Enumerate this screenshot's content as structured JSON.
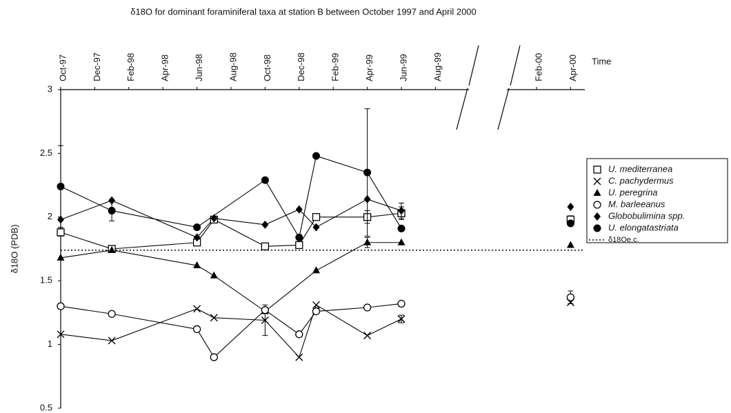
{
  "chart_data": {
    "type": "line",
    "title": "δ18O for dominant foraminiferal taxa at station B between October 1997 and April 2000",
    "y_label": "δ18O (PDB)",
    "x_label": "Time",
    "xticks": [
      "Oct-97",
      "Dec-97",
      "Feb-98",
      "Apr-98",
      "Jun-98",
      "Aug-98",
      "Oct-98",
      "Dec-98",
      "Feb-99",
      "Apr-99",
      "Jun-99",
      "Aug-99",
      "Feb-00",
      "Apr-00"
    ],
    "ylim": [
      0.5,
      3
    ],
    "yticks": [
      0.5,
      1,
      1.5,
      2,
      2.5,
      3
    ],
    "series": [
      {
        "name": "U. mediterranea",
        "marker": "square-open",
        "color": "#000000",
        "x": [
          "Oct-97",
          "Jan-98",
          "Jun-98",
          "Jul-98",
          "Oct-98",
          "Dec-98",
          "Jan-99",
          "Apr-99",
          "Jun-99",
          "Apr-00"
        ],
        "values": [
          1.88,
          1.75,
          1.8,
          1.98,
          1.77,
          1.78,
          2.0,
          2.0,
          2.03,
          1.98
        ],
        "errors": [
          0.03,
          null,
          null,
          null,
          null,
          null,
          null,
          0.05,
          0.05,
          0.03
        ]
      },
      {
        "name": "C. pachydermus",
        "marker": "cross",
        "color": "#000000",
        "x": [
          "Oct-97",
          "Jan-98",
          "Jun-98",
          "Jul-98",
          "Oct-98",
          "Dec-98",
          "Jan-99",
          "Apr-99",
          "Jun-99",
          "Apr-00"
        ],
        "values": [
          1.08,
          1.03,
          1.28,
          1.21,
          1.19,
          0.9,
          1.31,
          1.07,
          1.2,
          1.33
        ],
        "errors": [
          null,
          null,
          null,
          null,
          0.12,
          null,
          null,
          null,
          0.03,
          null
        ]
      },
      {
        "name": "U. peregrina",
        "marker": "triangle",
        "color": "#000000",
        "x": [
          "Oct-97",
          "Jan-98",
          "Jun-98",
          "Jul-98",
          "Oct-98",
          "Jan-99",
          "Apr-99",
          "Jun-99",
          "Apr-00"
        ],
        "values": [
          1.68,
          1.74,
          1.62,
          1.54,
          1.26,
          1.58,
          1.8,
          1.8,
          1.78
        ],
        "errors": [
          null,
          null,
          null,
          null,
          null,
          null,
          0.04,
          null,
          null
        ]
      },
      {
        "name": "M. barleeanus",
        "marker": "circle-open",
        "color": "#000000",
        "x": [
          "Oct-97",
          "Jan-98",
          "Jun-98",
          "Jul-98",
          "Oct-98",
          "Dec-98",
          "Jan-99",
          "Apr-99",
          "Jun-99",
          "Apr-00"
        ],
        "values": [
          1.3,
          1.24,
          1.12,
          0.9,
          1.27,
          1.08,
          1.26,
          1.29,
          1.32,
          1.37
        ],
        "errors": [
          null,
          null,
          null,
          null,
          null,
          null,
          null,
          null,
          null,
          0.05
        ]
      },
      {
        "name": "Globobulimina spp.",
        "marker": "diamond",
        "color": "#000000",
        "x": [
          "Oct-97",
          "Jan-98",
          "Jun-98",
          "Jul-98",
          "Oct-98",
          "Dec-98",
          "Jan-99",
          "Apr-99",
          "Jun-99",
          "Apr-00"
        ],
        "values": [
          1.98,
          2.13,
          1.84,
          1.99,
          1.94,
          2.06,
          1.92,
          2.14,
          2.05,
          2.08
        ],
        "errors": [
          null,
          null,
          null,
          null,
          null,
          null,
          null,
          null,
          0.06,
          null
        ]
      },
      {
        "name": "U. elongatastriata",
        "marker": "circle",
        "color": "#000000",
        "x": [
          "Oct-97",
          "Jan-98",
          "Jun-98",
          "Oct-98",
          "Dec-98",
          "Jan-99",
          "Apr-99",
          "Jun-99",
          "Apr-00"
        ],
        "values": [
          2.24,
          2.05,
          1.92,
          2.29,
          1.84,
          2.48,
          2.35,
          1.91,
          1.95
        ],
        "errors": [
          0.32,
          0.08,
          null,
          null,
          null,
          null,
          0.5,
          null,
          null
        ]
      }
    ],
    "reference_line": {
      "name": "δ18Oe.c.",
      "value": 1.74,
      "style": "dotted",
      "color": "#000000"
    }
  }
}
